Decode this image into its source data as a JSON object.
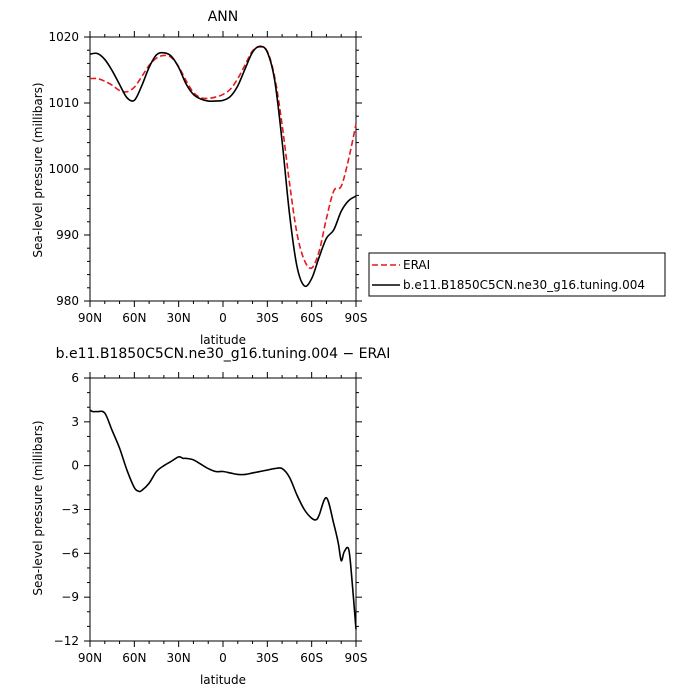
{
  "chart_data": [
    {
      "type": "line",
      "title": "ANN",
      "xlabel": "latitude",
      "ylabel": "Sea-level pressure (millibars)",
      "xlim": [
        90,
        -90
      ],
      "ylim": [
        980,
        1020
      ],
      "x_ticks": [
        90,
        60,
        30,
        0,
        -30,
        -60,
        -90
      ],
      "x_tick_labels": [
        "90N",
        "60N",
        "30N",
        "0",
        "30S",
        "60S",
        "90S"
      ],
      "y_ticks": [
        980,
        990,
        1000,
        1010,
        1020
      ],
      "y_tick_labels": [
        "980",
        "990",
        "1000",
        "1010",
        "1020"
      ],
      "legend_position": "right, outside plot",
      "series": [
        {
          "name": "ERAI",
          "color": "#e41a1c",
          "dash": "dashed",
          "x": [
            90,
            85,
            80,
            75,
            70,
            65,
            60,
            55,
            50,
            45,
            40,
            35,
            30,
            25,
            20,
            15,
            10,
            5,
            0,
            -5,
            -10,
            -15,
            -20,
            -25,
            -30,
            -35,
            -40,
            -45,
            -50,
            -55,
            -60,
            -65,
            -70,
            -75,
            -80,
            -85,
            -90
          ],
          "y": [
            1013.7,
            1013.7,
            1013.3,
            1012.7,
            1011.9,
            1011.7,
            1012.4,
            1014.0,
            1015.7,
            1016.8,
            1017.2,
            1016.9,
            1015.5,
            1013.4,
            1011.6,
            1010.8,
            1010.7,
            1010.9,
            1011.3,
            1012.1,
            1013.7,
            1015.8,
            1017.9,
            1018.5,
            1017.8,
            1013.9,
            1006.7,
            997.9,
            990.3,
            986.2,
            985.0,
            987.5,
            992.5,
            996.7,
            997.4,
            1001.5,
            1006.8
          ]
        },
        {
          "name": "b.e11.B1850C5CN.ne30_g16.tuning.004",
          "color": "#000000",
          "dash": "solid",
          "x": [
            90,
            85,
            80,
            75,
            70,
            65,
            60,
            55,
            50,
            45,
            40,
            35,
            30,
            25,
            20,
            15,
            10,
            5,
            0,
            -5,
            -10,
            -15,
            -20,
            -25,
            -30,
            -35,
            -40,
            -45,
            -50,
            -55,
            -60,
            -65,
            -70,
            -75,
            -80,
            -85,
            -90
          ],
          "y": [
            1017.4,
            1017.5,
            1016.6,
            1014.9,
            1012.8,
            1010.8,
            1010.4,
            1012.6,
            1015.4,
            1017.3,
            1017.6,
            1017.1,
            1015.4,
            1012.9,
            1011.3,
            1010.6,
            1010.3,
            1010.3,
            1010.4,
            1011.0,
            1012.6,
            1015.2,
            1017.7,
            1018.6,
            1017.7,
            1013.4,
            1004.2,
            993.2,
            985.3,
            982.3,
            983.4,
            986.6,
            989.5,
            990.8,
            993.6,
            995.2,
            995.9
          ]
        }
      ]
    },
    {
      "type": "line",
      "title": "b.e11.B1850C5CN.ne30_g16.tuning.004 − ERAI",
      "xlabel": "latitude",
      "ylabel": "Sea-level pressure (millibars)",
      "xlim": [
        90,
        -90
      ],
      "ylim": [
        -12,
        6
      ],
      "x_ticks": [
        90,
        60,
        30,
        0,
        -30,
        -60,
        -90
      ],
      "x_tick_labels": [
        "90N",
        "60N",
        "30N",
        "0",
        "30S",
        "60S",
        "90S"
      ],
      "y_ticks": [
        -12,
        -9,
        -6,
        -3,
        0,
        3,
        6
      ],
      "y_tick_labels": [
        "−12",
        "−9",
        "−6",
        "−3",
        "0",
        "3",
        "6"
      ],
      "series": [
        {
          "color": "#000000",
          "dash": "solid",
          "x": [
            90,
            88,
            85,
            80,
            75,
            70,
            65,
            60,
            57,
            55,
            50,
            45,
            40,
            35,
            30,
            27,
            25,
            20,
            15,
            10,
            5,
            0,
            -5,
            -10,
            -15,
            -20,
            -25,
            -30,
            -35,
            -40,
            -45,
            -50,
            -55,
            -60,
            -63,
            -65,
            -70,
            -75,
            -78,
            -80,
            -82,
            -85,
            -87,
            -90
          ],
          "y": [
            3.8,
            3.7,
            3.7,
            3.6,
            2.4,
            1.2,
            -0.3,
            -1.5,
            -1.75,
            -1.7,
            -1.2,
            -0.4,
            0.0,
            0.3,
            0.6,
            0.5,
            0.5,
            0.4,
            0.1,
            -0.2,
            -0.4,
            -0.4,
            -0.5,
            -0.6,
            -0.6,
            -0.5,
            -0.4,
            -0.3,
            -0.2,
            -0.2,
            -0.8,
            -2.0,
            -3.0,
            -3.6,
            -3.7,
            -3.4,
            -2.2,
            -4.0,
            -5.3,
            -6.5,
            -5.9,
            -5.7,
            -7.5,
            -11.2
          ]
        }
      ]
    }
  ]
}
